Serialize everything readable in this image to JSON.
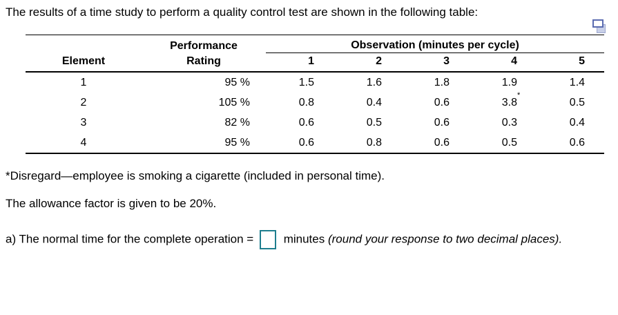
{
  "header": {
    "title": "The results of a time study to perform a quality control test are shown in the following table:"
  },
  "icons": {
    "popout_table_icon": "two-overlapping-window-rectangles"
  },
  "colors": {
    "answer_box_border": "#1E7E8E",
    "icon_front_border": "#5A6BB0",
    "icon_back_fill": "#C9D0E8",
    "icon_back_border": "#9AA5CE",
    "rule": "#000000",
    "text": "#000000",
    "background": "#FFFFFF"
  },
  "table": {
    "headers": {
      "performance_line1": "Performance",
      "performance_line2": "Rating",
      "element": "Element",
      "observation_group": "Observation (minutes per cycle)",
      "observation_cols": [
        "1",
        "2",
        "3",
        "4",
        "5"
      ]
    },
    "rows": [
      {
        "element": "1",
        "rating": "95 %",
        "obs": [
          "1.5",
          "1.6",
          "1.8",
          "1.9",
          "1.4"
        ]
      },
      {
        "element": "2",
        "rating": "105 %",
        "obs": [
          "0.8",
          "0.4",
          "0.6",
          "3.8",
          "0.5"
        ],
        "obs4_marker": "*"
      },
      {
        "element": "3",
        "rating": "82 %",
        "obs": [
          "0.6",
          "0.5",
          "0.6",
          "0.3",
          "0.4"
        ]
      },
      {
        "element": "4",
        "rating": "95 %",
        "obs": [
          "0.6",
          "0.8",
          "0.6",
          "0.5",
          "0.6"
        ]
      }
    ]
  },
  "notes": {
    "footnote": "*Disregard—employee is smoking a cigarette (included in personal time).",
    "allowance": "The allowance factor is given to be 20%."
  },
  "question": {
    "prefix": "a) The normal time for the complete operation =",
    "answer_value": "",
    "suffix": "minutes",
    "italic_note": "(round your response to two decimal places)."
  }
}
